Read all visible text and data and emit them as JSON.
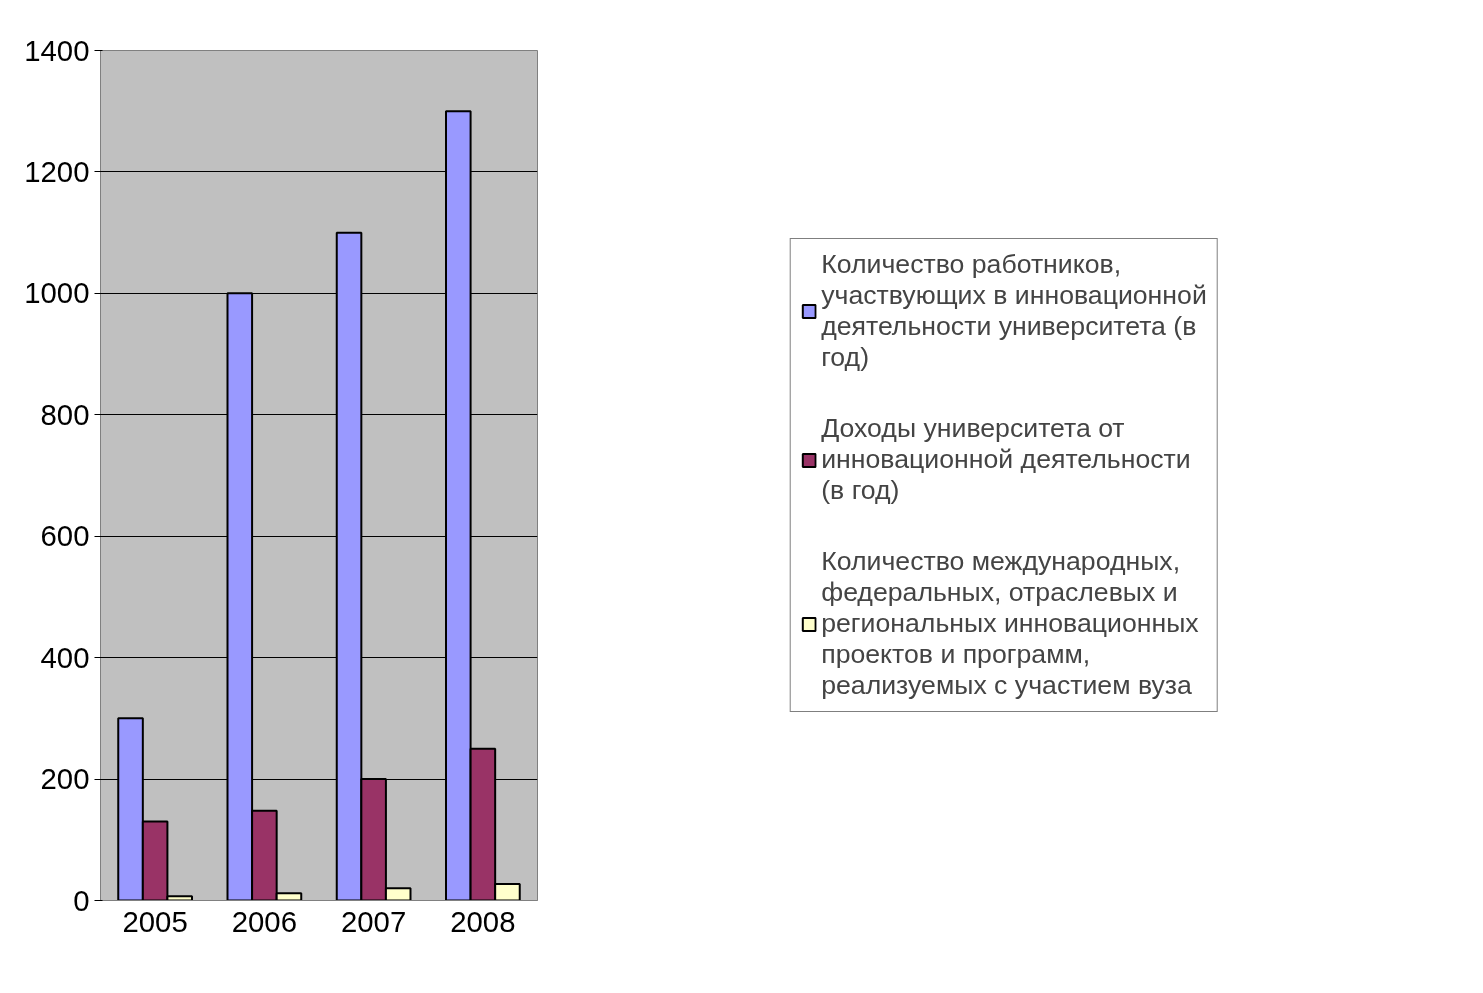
{
  "chart_data": {
    "type": "bar",
    "categories": [
      "2005",
      "2006",
      "2007",
      "2008"
    ],
    "series": [
      {
        "name": "Количество работников, участвующих в инновационной деятельности университета (в год)",
        "color": "#9999ff",
        "values": [
          300,
          1000,
          1100,
          1300
        ]
      },
      {
        "name": "Доходы университета от инновационной деятельности (в год)",
        "color": "#993366",
        "values": [
          130,
          148,
          200,
          250
        ]
      },
      {
        "name": "Количество международных, федеральных, отраслевых и региональных инновационных проектов и программ, реализуемых с участием вуза",
        "color": "#ffffcc",
        "values": [
          7,
          12,
          20,
          27
        ]
      }
    ],
    "ylim": [
      0,
      1400
    ],
    "yticks": [
      0,
      200,
      400,
      600,
      800,
      1000,
      1200,
      1400
    ],
    "grid": "y",
    "legend": "right"
  }
}
